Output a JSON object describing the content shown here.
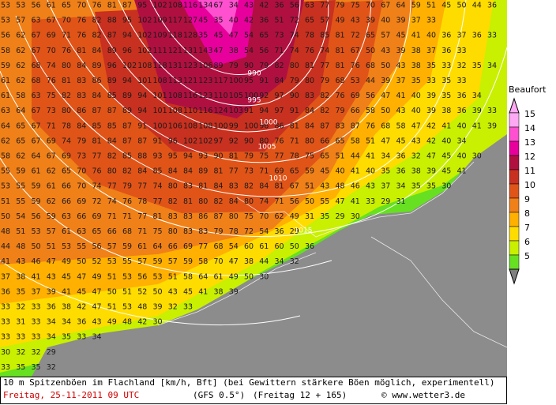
{
  "map": {
    "grid": [
      [
        53,
        53,
        56,
        61,
        65,
        70,
        76,
        81,
        87,
        95,
        102,
        108,
        116,
        134,
        67,
        34,
        43,
        42,
        36,
        56,
        63,
        77,
        79,
        75,
        70,
        67,
        64,
        59,
        51,
        45,
        50,
        44,
        36
      ],
      [
        53,
        57,
        63,
        67,
        70,
        76,
        82,
        88,
        95,
        102,
        109,
        117,
        127,
        45,
        35,
        40,
        42,
        36,
        51,
        72,
        65,
        57,
        49,
        43,
        39,
        40,
        39,
        37,
        33
      ],
      [
        56,
        62,
        67,
        69,
        71,
        76,
        82,
        87,
        94,
        102,
        109,
        118,
        128,
        35,
        45,
        47,
        54,
        65,
        73,
        74,
        78,
        85,
        81,
        72,
        65,
        57,
        45,
        41,
        40,
        36,
        37,
        36,
        33
      ],
      [
        58,
        62,
        67,
        70,
        76,
        81,
        84,
        89,
        96,
        102,
        111,
        121,
        131,
        143,
        47,
        38,
        54,
        56,
        71,
        74,
        76,
        74,
        81,
        67,
        50,
        43,
        39,
        38,
        37,
        36,
        33
      ],
      [
        59,
        62,
        68,
        74,
        80,
        84,
        89,
        96,
        102,
        108,
        118,
        131,
        123,
        106,
        89,
        79,
        90,
        79,
        82,
        80,
        81,
        77,
        81,
        76,
        68,
        50,
        43,
        38,
        35,
        33,
        32,
        35,
        34
      ],
      [
        61,
        62,
        68,
        76,
        81,
        83,
        86,
        89,
        94,
        101,
        108,
        113,
        121,
        123,
        117,
        100,
        95,
        91,
        84,
        79,
        80,
        79,
        68,
        53,
        44,
        39,
        37,
        35,
        33,
        35,
        33
      ],
      [
        61,
        58,
        63,
        75,
        82,
        83,
        84,
        85,
        89,
        94,
        101,
        108,
        116,
        123,
        110,
        105,
        100,
        92,
        97,
        90,
        83,
        82,
        76,
        69,
        56,
        47,
        41,
        40,
        39,
        35,
        36,
        34
      ],
      [
        63,
        64,
        67,
        73,
        80,
        86,
        87,
        87,
        89,
        94,
        101,
        108,
        110,
        116,
        124,
        103,
        91,
        94,
        97,
        91,
        84,
        82,
        79,
        66,
        58,
        50,
        43,
        40,
        39,
        38,
        36,
        39,
        33
      ],
      [
        64,
        65,
        67,
        71,
        78,
        84,
        85,
        85,
        87,
        91,
        100,
        106,
        108,
        108,
        100,
        99,
        100,
        96,
        86,
        81,
        84,
        87,
        83,
        87,
        76,
        68,
        58,
        47,
        42,
        41,
        40,
        41,
        39
      ],
      [
        62,
        65,
        67,
        69,
        74,
        79,
        81,
        84,
        87,
        87,
        91,
        96,
        102,
        102,
        97,
        92,
        90,
        80,
        76,
        71,
        80,
        66,
        65,
        58,
        51,
        47,
        45,
        43,
        42,
        40,
        34
      ],
      [
        58,
        62,
        64,
        67,
        69,
        73,
        77,
        82,
        85,
        88,
        93,
        95,
        94,
        93,
        90,
        81,
        79,
        75,
        77,
        78,
        75,
        65,
        51,
        44,
        41,
        34,
        36,
        32,
        47,
        45,
        40,
        30
      ],
      [
        55,
        59,
        61,
        62,
        65,
        70,
        76,
        80,
        82,
        84,
        85,
        84,
        84,
        89,
        81,
        77,
        73,
        71,
        69,
        65,
        59,
        45,
        40,
        41,
        40,
        35,
        36,
        38,
        39,
        45,
        41
      ],
      [
        53,
        55,
        59,
        61,
        66,
        70,
        74,
        77,
        79,
        77,
        74,
        80,
        83,
        81,
        84,
        83,
        82,
        84,
        81,
        67,
        51,
        43,
        48,
        46,
        43,
        37,
        34,
        35,
        35,
        30
      ],
      [
        51,
        55,
        59,
        62,
        66,
        69,
        72,
        74,
        76,
        78,
        77,
        82,
        81,
        80,
        82,
        84,
        80,
        74,
        71,
        56,
        50,
        55,
        47,
        41,
        33,
        29,
        31
      ],
      [
        50,
        54,
        56,
        59,
        63,
        66,
        69,
        71,
        71,
        77,
        81,
        83,
        83,
        86,
        87,
        80,
        75,
        70,
        62,
        49,
        31,
        35,
        29,
        30
      ],
      [
        48,
        51,
        53,
        57,
        61,
        63,
        65,
        66,
        68,
        71,
        75,
        80,
        83,
        83,
        79,
        78,
        72,
        54,
        36,
        29
      ],
      [
        44,
        48,
        50,
        51,
        53,
        55,
        56,
        57,
        59,
        61,
        64,
        66,
        69,
        77,
        68,
        54,
        60,
        61,
        60,
        50,
        36
      ],
      [
        41,
        43,
        46,
        47,
        49,
        50,
        52,
        53,
        55,
        57,
        59,
        57,
        59,
        58,
        70,
        47,
        38,
        44,
        34,
        32
      ],
      [
        37,
        38,
        41,
        43,
        45,
        47,
        49,
        51,
        53,
        56,
        53,
        51,
        58,
        64,
        61,
        49,
        50,
        30
      ],
      [
        36,
        35,
        37,
        39,
        41,
        45,
        47,
        50,
        51,
        52,
        50,
        43,
        45,
        41,
        38,
        39
      ],
      [
        33,
        32,
        33,
        36,
        38,
        42,
        47,
        51,
        53,
        48,
        39,
        32,
        33
      ],
      [
        33,
        31,
        33,
        34,
        34,
        36,
        43,
        49,
        48,
        42,
        30
      ],
      [
        33,
        33,
        33,
        34,
        35,
        33,
        34
      ],
      [
        30,
        32,
        32,
        29
      ],
      [
        33,
        35,
        35,
        32
      ]
    ],
    "isobars": [
      990,
      995,
      1000,
      1005,
      1010,
      1015
    ]
  },
  "legend": {
    "title": "Beaufort",
    "items": [
      {
        "label": "15",
        "color": "#ffa8f4"
      },
      {
        "label": "14",
        "color": "#ff50d0"
      },
      {
        "label": "13",
        "color": "#e8009c"
      },
      {
        "label": "12",
        "color": "#b01040"
      },
      {
        "label": "11",
        "color": "#c83020"
      },
      {
        "label": "10",
        "color": "#e05418"
      },
      {
        "label": "9",
        "color": "#f08018"
      },
      {
        "label": "8",
        "color": "#ffb000"
      },
      {
        "label": "7",
        "color": "#ffdc00"
      },
      {
        "label": "6",
        "color": "#c8f000"
      },
      {
        "label": "5",
        "color": "#66e020"
      }
    ]
  },
  "caption": {
    "line1": "10 m Spitzenböen im Flachland [km/h, Bft] (bei Gewittern stärkere Böen möglich, experimentell)",
    "date": "Freitag, 25-11-2011  09 UTC",
    "model": "(GFS 0.5°)",
    "run": "(Freitag 12 + 165)",
    "source": "© www.wetter3.de"
  }
}
